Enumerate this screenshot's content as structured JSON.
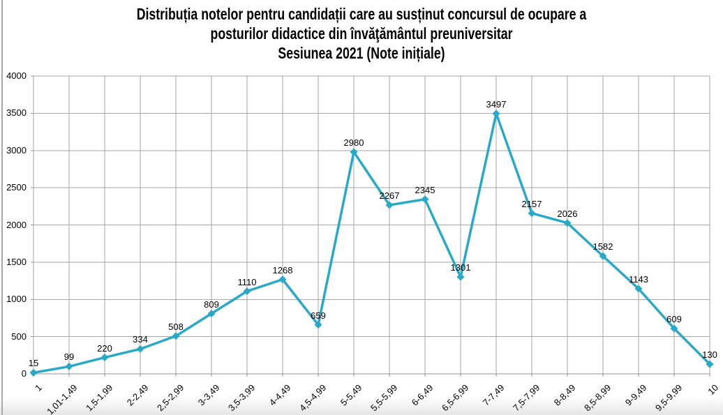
{
  "title_lines": [
    "Distribuția notelor pentru candidații care au susținut concursul de ocupare a",
    "posturilor didactice din învăţământul preuniversitar",
    "Sesiunea 2021 (Note inițiale)"
  ],
  "chart_data": {
    "type": "line",
    "title": "Distribuția notelor pentru candidații care au susținut concursul de ocupare a posturilor didactice din învăţământul preuniversitar Sesiunea 2021 (Note inițiale)",
    "categories": [
      "1",
      "1,01-1,49",
      "1,5-1,99",
      "2-2,49",
      "2,5-2,99",
      "3-3,49",
      "3,5-3,99",
      "4-4,49",
      "4,5-4,99",
      "5-5,49",
      "5,5-5,99",
      "6-6,49",
      "6,5-6,99",
      "7-7,49",
      "7,5-7,99",
      "8-8,49",
      "8,5-8,99",
      "9-9,49",
      "9,5-9,99",
      "10"
    ],
    "values": [
      15,
      99,
      220,
      334,
      508,
      809,
      1110,
      1268,
      659,
      2980,
      2267,
      2345,
      1301,
      3497,
      2157,
      2026,
      1582,
      1143,
      609,
      130
    ],
    "yticks": [
      0,
      500,
      1000,
      1500,
      2000,
      2500,
      3000,
      3500,
      4000
    ],
    "ylim": [
      0,
      4000
    ],
    "xlabel": "",
    "ylabel": "",
    "grid": true,
    "legend_position": "none",
    "data_labels": true,
    "marker": "diamond"
  },
  "colors": {
    "line": "#29a9c8",
    "marker": "#29a9c8",
    "gridline": "#a6a6a6",
    "axis": "#8f8f8f",
    "label_text": "#000000"
  }
}
